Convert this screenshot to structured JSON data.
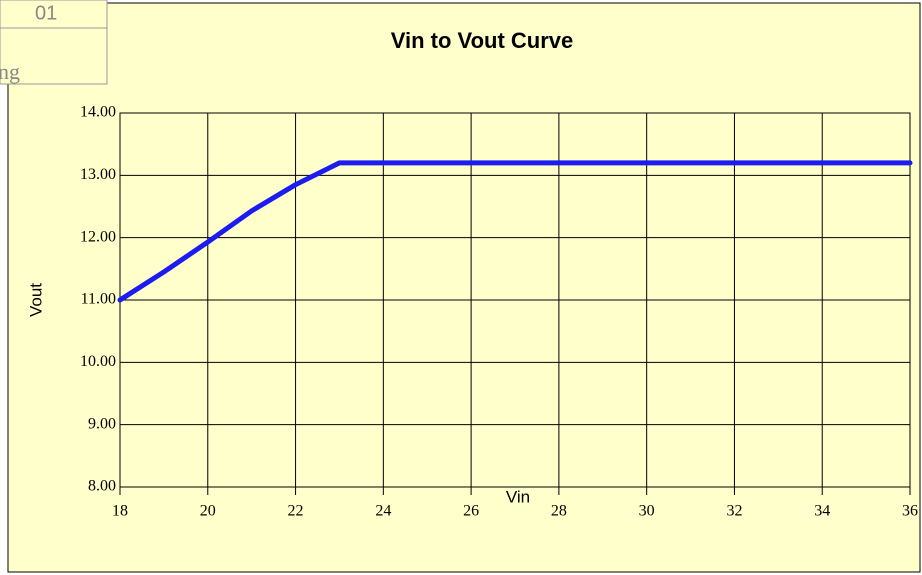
{
  "chart_data": {
    "type": "line",
    "title": "Vin to Vout  Curve",
    "x_label": "Vin",
    "y_label": "Vout",
    "annotations": [
      "01",
      "ng"
    ],
    "x": [
      18,
      19,
      20,
      21,
      22,
      23,
      36
    ],
    "values": [
      11.0,
      11.45,
      11.93,
      12.43,
      12.85,
      13.2,
      13.2
    ],
    "color": "#1c1cf0",
    "xlim": [
      18,
      36
    ],
    "xticks": [
      18,
      20,
      22,
      24,
      26,
      28,
      30,
      32,
      34,
      36
    ],
    "ylim": [
      8,
      14
    ],
    "yticks": [
      {
        "value": 8,
        "label": "8.00"
      },
      {
        "value": 9,
        "label": "9.00"
      },
      {
        "value": 10,
        "label": "10.00"
      },
      {
        "value": 11,
        "label": "11.00"
      },
      {
        "value": 12,
        "label": "12.00"
      },
      {
        "value": 13,
        "label": "13.00"
      },
      {
        "value": 14,
        "label": "14.00"
      }
    ],
    "grid": true
  }
}
